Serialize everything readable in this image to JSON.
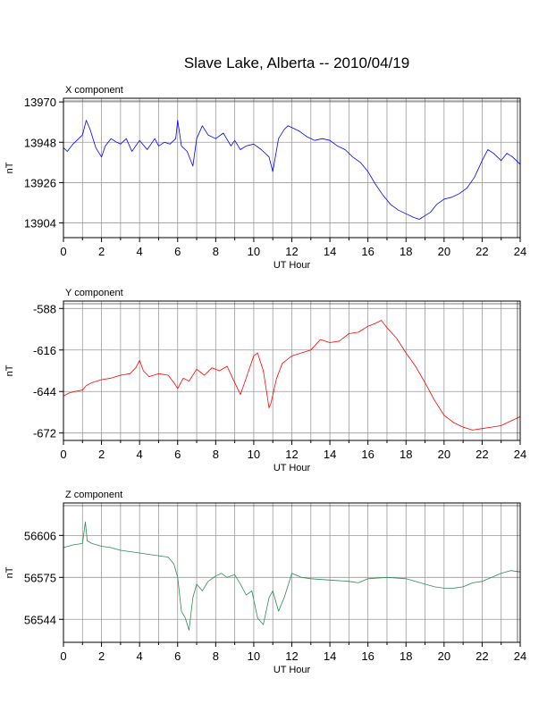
{
  "figure": {
    "title": "Slave Lake, Alberta -- 2010/04/19"
  },
  "chart_data": [
    {
      "type": "line",
      "title": "X component",
      "xlabel": "UT Hour",
      "ylabel": "nT",
      "xlim": [
        0,
        24
      ],
      "ylim": [
        13896,
        13972
      ],
      "xticks": [
        0,
        2,
        4,
        6,
        8,
        10,
        12,
        14,
        16,
        18,
        20,
        22,
        24
      ],
      "yticks": [
        13904,
        13926,
        13948,
        13970
      ],
      "grid": true,
      "color": "#0000ff",
      "series": [
        {
          "x": [
            0,
            0.2,
            0.5,
            0.8,
            1.0,
            1.2,
            1.4,
            1.7,
            2.0,
            2.2,
            2.5,
            2.8,
            3.0,
            3.3,
            3.6,
            4.0,
            4.4,
            4.8,
            5.0,
            5.3,
            5.6,
            5.9,
            6.0,
            6.2,
            6.5,
            6.8,
            7.0,
            7.3,
            7.6,
            8.0,
            8.4,
            8.8,
            9.0,
            9.3,
            9.6,
            10.0,
            10.4,
            10.8,
            11.0,
            11.3,
            11.6,
            11.8,
            12.0,
            12.4,
            12.8,
            13.2,
            13.6,
            14.0,
            14.4,
            14.8,
            15.2,
            15.6,
            16.0,
            16.4,
            16.8,
            17.2,
            17.6,
            18.0,
            18.4,
            18.7,
            19.0,
            19.3,
            19.6,
            20.0,
            20.4,
            20.8,
            21.2,
            21.6,
            22.0,
            22.3,
            22.6,
            23.0,
            23.3,
            23.6,
            24.0
          ],
          "y": [
            13945,
            13943,
            13947,
            13950,
            13952,
            13960,
            13955,
            13945,
            13940,
            13946,
            13950,
            13948,
            13947,
            13950,
            13943,
            13949,
            13944,
            13950,
            13946,
            13948,
            13947,
            13950,
            13960,
            13946,
            13943,
            13935,
            13950,
            13957,
            13952,
            13950,
            13953,
            13946,
            13949,
            13944,
            13946,
            13947,
            13944,
            13940,
            13932,
            13950,
            13955,
            13957,
            13956,
            13954,
            13951,
            13949,
            13950,
            13949,
            13946,
            13944,
            13940,
            13937,
            13932,
            13925,
            13919,
            13914,
            13911,
            13909,
            13907,
            13906,
            13908,
            13910,
            13914,
            13917,
            13918,
            13920,
            13923,
            13929,
            13938,
            13944,
            13942,
            13938,
            13942,
            13940,
            13936
          ]
        }
      ]
    },
    {
      "type": "line",
      "title": "Y component",
      "xlabel": "UT Hour",
      "ylabel": "nT",
      "xlim": [
        0,
        24
      ],
      "ylim": [
        -677,
        -583
      ],
      "xticks": [
        0,
        2,
        4,
        6,
        8,
        10,
        12,
        14,
        16,
        18,
        20,
        22,
        24
      ],
      "yticks": [
        -588,
        -616,
        -644,
        -672
      ],
      "grid": true,
      "color": "#ff0000",
      "series": [
        {
          "x": [
            0,
            0.3,
            0.6,
            1.0,
            1.2,
            1.5,
            2.0,
            2.5,
            3.0,
            3.5,
            3.8,
            4.0,
            4.2,
            4.5,
            5.0,
            5.5,
            5.8,
            6.0,
            6.3,
            6.6,
            7.0,
            7.4,
            7.8,
            8.2,
            8.6,
            9.0,
            9.3,
            9.6,
            10.0,
            10.2,
            10.5,
            10.8,
            10.9,
            11.2,
            11.5,
            12.0,
            12.5,
            13.0,
            13.5,
            14.0,
            14.5,
            15.0,
            15.5,
            16.0,
            16.4,
            16.7,
            17.0,
            17.5,
            18.0,
            18.5,
            19.0,
            19.5,
            20.0,
            20.5,
            21.0,
            21.5,
            22.0,
            22.5,
            23.0,
            23.5,
            24.0
          ],
          "y": [
            -647,
            -645,
            -644,
            -643,
            -640,
            -638,
            -636,
            -635,
            -633,
            -632,
            -628,
            -623,
            -630,
            -634,
            -632,
            -633,
            -638,
            -642,
            -635,
            -637,
            -629,
            -633,
            -628,
            -630,
            -627,
            -638,
            -646,
            -635,
            -620,
            -618,
            -630,
            -655,
            -652,
            -635,
            -625,
            -620,
            -618,
            -616,
            -609,
            -611,
            -610,
            -605,
            -604,
            -600,
            -598,
            -596,
            -601,
            -608,
            -618,
            -627,
            -638,
            -650,
            -660,
            -665,
            -668,
            -670,
            -669,
            -668,
            -667,
            -664,
            -661
          ]
        }
      ]
    },
    {
      "type": "line",
      "title": "Z component",
      "xlabel": "UT Hour",
      "ylabel": "nT",
      "xlim": [
        0,
        24
      ],
      "ylim": [
        56527,
        56630
      ],
      "xticks": [
        0,
        2,
        4,
        6,
        8,
        10,
        12,
        14,
        16,
        18,
        20,
        22,
        24
      ],
      "yticks": [
        56544,
        56575,
        56606
      ],
      "grid": true,
      "color": "#2e8b57",
      "series": [
        {
          "x": [
            0,
            0.5,
            1.0,
            1.15,
            1.25,
            1.5,
            2.0,
            2.5,
            3.0,
            3.5,
            4.0,
            4.5,
            5.0,
            5.5,
            5.8,
            6.0,
            6.2,
            6.4,
            6.6,
            6.8,
            7.0,
            7.3,
            7.6,
            8.0,
            8.3,
            8.6,
            9.0,
            9.3,
            9.6,
            9.9,
            10.2,
            10.5,
            10.8,
            11.0,
            11.3,
            11.6,
            12.0,
            12.5,
            13.0,
            14.0,
            15.0,
            15.5,
            16.0,
            17.0,
            18.0,
            19.0,
            19.5,
            20.0,
            20.5,
            21.0,
            21.5,
            22.0,
            22.5,
            23.0,
            23.5,
            24.0
          ],
          "y": [
            56597,
            56599,
            56600,
            56616,
            56602,
            56600,
            56598,
            56597,
            56595,
            56594,
            56593,
            56592,
            56591,
            56590,
            56585,
            56575,
            56550,
            56545,
            56536,
            56560,
            56570,
            56565,
            56572,
            56576,
            56578,
            56575,
            56577,
            56570,
            56562,
            56565,
            56545,
            56540,
            56560,
            56565,
            56550,
            56560,
            56578,
            56575,
            56574,
            56573,
            56572,
            56571,
            56574,
            56575,
            56574,
            56570,
            56568,
            56567,
            56567,
            56568,
            56571,
            56572,
            56575,
            56578,
            56580,
            56579
          ]
        }
      ]
    }
  ]
}
